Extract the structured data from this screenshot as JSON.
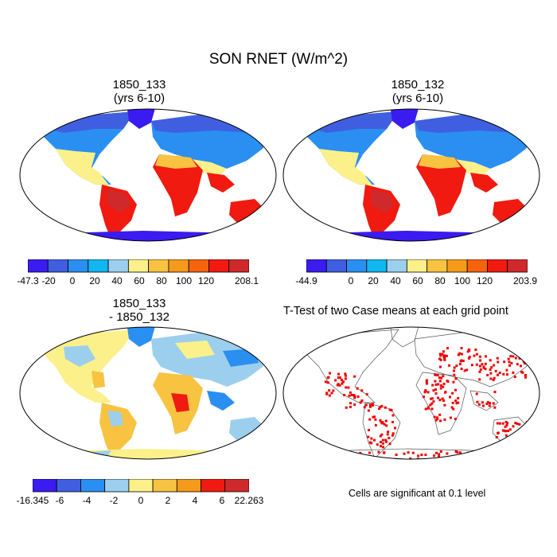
{
  "title": "SON RNET (W/m^2)",
  "panels": [
    {
      "id": "p1",
      "title_line1": "1850_133",
      "title_line2": "(yrs 6-10)",
      "colorbar_labels": [
        "-47.3",
        "-20",
        "0",
        "20",
        "40",
        "60",
        "80",
        "100",
        "120",
        "208.1"
      ],
      "colors": [
        "#3a1bf0",
        "#3f5fe0",
        "#2a8ff0",
        "#12b6f0",
        "#9ccfee",
        "#fbf08a",
        "#f7c341",
        "#f69a1b",
        "#f5630f",
        "#f01a10",
        "#d0292b"
      ]
    },
    {
      "id": "p2",
      "title_line1": "1850_132",
      "title_line2": "(yrs 6-10)",
      "colorbar_labels": [
        "-44.9",
        "0",
        "20",
        "40",
        "60",
        "80",
        "100",
        "120",
        "203.9"
      ],
      "colors": [
        "#3a1bf0",
        "#3f5fe0",
        "#2a8ff0",
        "#12b6f0",
        "#9ccfee",
        "#fbf08a",
        "#f7c341",
        "#f69a1b",
        "#f5630f",
        "#f01a10",
        "#d0292b"
      ]
    },
    {
      "id": "p3",
      "title_line1": "1850_133",
      "title_line2": "- 1850_132",
      "colorbar_labels": [
        "-16.345",
        "-6",
        "-4",
        "-2",
        "0",
        "2",
        "4",
        "6",
        "22.263"
      ],
      "colors": [
        "#3a1bf0",
        "#3f5fe0",
        "#2a8ff0",
        "#9ccfee",
        "#fbf08a",
        "#f7c341",
        "#f69a1b",
        "#f01a10",
        "#d0292b"
      ]
    },
    {
      "id": "p4",
      "title": "T-Test of two Case means at each grid point",
      "caption": "Cells are significant at 0.1 level",
      "significant_color": "#ee0000"
    }
  ]
}
